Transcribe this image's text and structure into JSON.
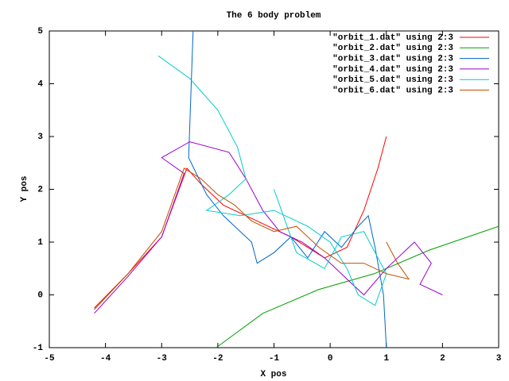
{
  "chart_data": {
    "type": "line",
    "title": "The 6 body problem",
    "x_label": "X pos",
    "y_label": "Y pos",
    "xlim": [
      -5,
      3
    ],
    "ylim": [
      -1,
      5
    ],
    "xticks": [
      -5,
      -4,
      -3,
      -2,
      -1,
      0,
      1,
      2,
      3
    ],
    "yticks": [
      -1,
      0,
      1,
      2,
      3,
      4,
      5
    ],
    "legend": "top right",
    "series": [
      {
        "name": "\"orbit_1.dat\" using 2:3",
        "color": "#ff0000",
        "x": [
          -4.2,
          -3.6,
          -3.0,
          -2.55,
          -2.3,
          -1.9,
          -1.3,
          -0.7,
          -0.1,
          0.3,
          0.6,
          0.85,
          1.0
        ],
        "values": [
          -0.25,
          0.4,
          1.1,
          2.4,
          2.1,
          1.7,
          1.4,
          1.1,
          0.7,
          0.9,
          1.6,
          2.4,
          3.0
        ]
      },
      {
        "name": "\"orbit_2.dat\" using 2:3",
        "color": "#00a000",
        "x": [
          -2.03,
          -1.2,
          -0.21,
          0.78,
          1.77,
          3.0
        ],
        "values": [
          -1.0,
          -0.35,
          0.1,
          0.4,
          0.85,
          1.3
        ]
      },
      {
        "name": "\"orbit_3.dat\" using 2:3",
        "color": "#0066cc",
        "x": [
          -2.44,
          -2.48,
          -2.52,
          -2.2,
          -1.9,
          -1.6,
          -1.4,
          -1.3,
          -1.0,
          -0.7,
          -0.4,
          -0.1,
          0.2,
          0.5,
          0.68,
          0.8,
          0.95,
          1.0
        ],
        "values": [
          5.0,
          3.8,
          2.6,
          1.9,
          1.5,
          1.2,
          1.0,
          0.6,
          0.8,
          1.1,
          0.7,
          1.2,
          0.9,
          1.3,
          1.5,
          0.9,
          0.0,
          -1.0
        ]
      },
      {
        "name": "\"orbit_4.dat\" using 2:3",
        "color": "#9900cc",
        "x": [
          -4.2,
          -3.6,
          -3.0,
          -2.6,
          -3.0,
          -2.5,
          -1.8,
          -1.5,
          -1.2,
          -0.9,
          -0.5,
          -0.1,
          0.3,
          0.6,
          1.0,
          1.5,
          1.8,
          1.6,
          2.0
        ],
        "values": [
          -0.35,
          0.35,
          1.1,
          2.3,
          2.6,
          2.9,
          2.7,
          2.2,
          1.6,
          1.2,
          1.0,
          0.7,
          0.3,
          0.0,
          0.5,
          1.0,
          0.6,
          0.2,
          0.0
        ]
      },
      {
        "name": "\"orbit_5.dat\" using 2:3",
        "color": "#00cccc",
        "x": [
          -3.06,
          -2.5,
          -2.0,
          -1.65,
          -1.5,
          -1.8,
          -2.2,
          -1.6,
          -1.0,
          -0.4,
          0.0,
          0.3,
          0.5,
          0.8,
          1.0,
          0.6,
          0.2,
          -0.1,
          -0.6,
          -1.0
        ],
        "values": [
          4.53,
          4.1,
          3.5,
          2.8,
          2.2,
          1.9,
          1.6,
          1.5,
          1.6,
          1.3,
          1.0,
          0.5,
          0.0,
          -0.2,
          0.4,
          1.2,
          1.1,
          0.5,
          0.8,
          2.0
        ]
      },
      {
        "name": "\"orbit_6.dat\" using 2:3",
        "color": "#c05000",
        "x": [
          -4.2,
          -3.6,
          -3.0,
          -2.6,
          -2.3,
          -2.0,
          -1.7,
          -1.4,
          -1.0,
          -0.6,
          -0.2,
          0.2,
          0.6,
          1.0,
          1.4,
          1.2,
          1.0
        ],
        "values": [
          -0.28,
          0.4,
          1.2,
          2.4,
          2.2,
          1.9,
          1.7,
          1.4,
          1.2,
          1.3,
          0.9,
          0.6,
          0.6,
          0.4,
          0.3,
          0.6,
          1.0
        ]
      }
    ]
  }
}
